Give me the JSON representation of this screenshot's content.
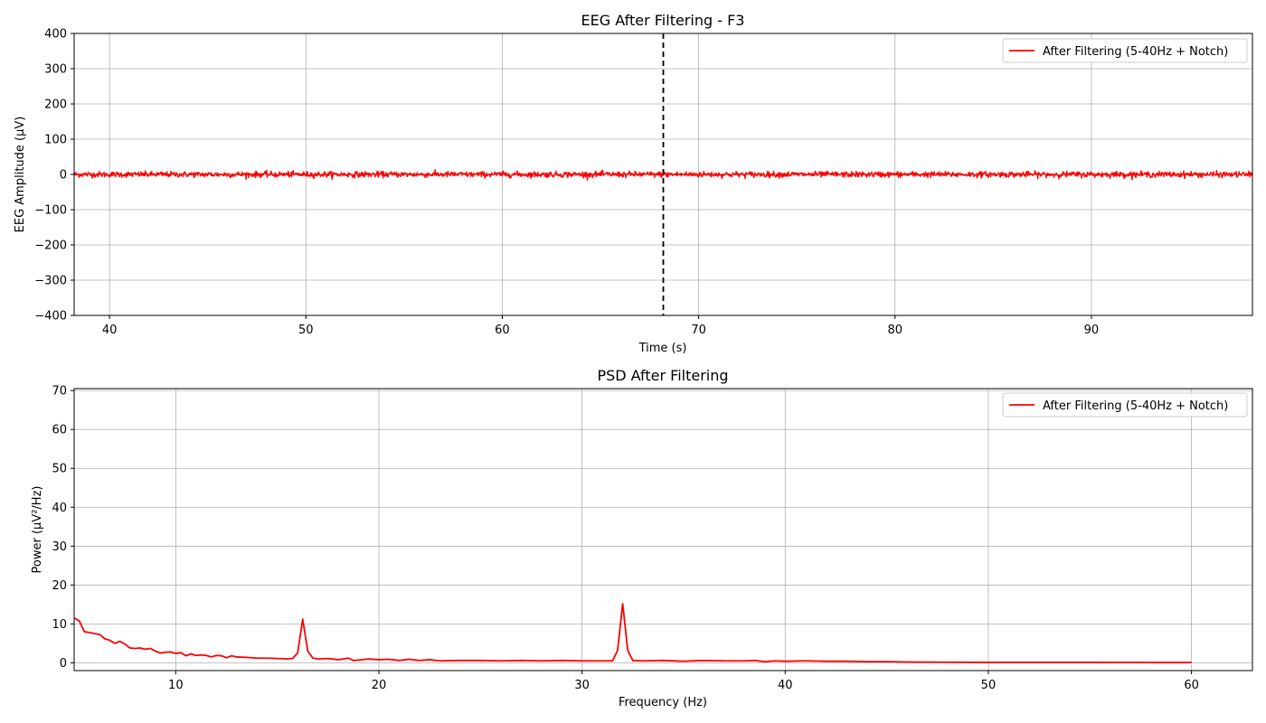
{
  "chart_data": [
    {
      "type": "line",
      "title": "EEG After Filtering - F3",
      "xlabel": "Time (s)",
      "ylabel": "EEG Amplitude (µV)",
      "xlim": [
        38.2,
        98.2
      ],
      "ylim": [
        -400,
        400
      ],
      "xticks": [
        40,
        50,
        60,
        70,
        80,
        90
      ],
      "yticks": [
        -400,
        -300,
        -200,
        -100,
        0,
        100,
        200,
        300,
        400
      ],
      "xtick_labels": [
        "40",
        "50",
        "60",
        "70",
        "80",
        "90"
      ],
      "ytick_labels": [
        "−400",
        "−300",
        "−200",
        "−100",
        "0",
        "100",
        "200",
        "300",
        "400"
      ],
      "grid": true,
      "legend_position": "top-right",
      "marker_line": {
        "x": 68.2,
        "style": "dashed",
        "color": "#000000"
      },
      "series": [
        {
          "name": "After Filtering (5-40Hz + Notch)",
          "color": "#ff0000",
          "signal": {
            "x_start": 38.2,
            "x_end": 98.2,
            "n_points": 2400,
            "center": 0,
            "noise_std": 4,
            "max_abs": 20
          }
        }
      ]
    },
    {
      "type": "line",
      "title": "PSD After Filtering",
      "xlabel": "Frequency (Hz)",
      "ylabel": "Power (µV²/Hz)",
      "xlim": [
        5,
        63
      ],
      "ylim": [
        -2,
        70.5
      ],
      "xticks": [
        10,
        20,
        30,
        40,
        50,
        60
      ],
      "yticks": [
        0,
        10,
        20,
        30,
        40,
        50,
        60,
        70
      ],
      "xtick_labels": [
        "10",
        "20",
        "30",
        "40",
        "50",
        "60"
      ],
      "ytick_labels": [
        "0",
        "10",
        "20",
        "30",
        "40",
        "50",
        "60",
        "70"
      ],
      "grid": true,
      "legend_position": "top-right",
      "series": [
        {
          "name": "After Filtering (5-40Hz + Notch)",
          "color": "#ff0000",
          "points": [
            [
              5.0,
              11.5
            ],
            [
              5.25,
              10.8
            ],
            [
              5.5,
              8.0
            ],
            [
              5.75,
              7.8
            ],
            [
              6.0,
              7.5
            ],
            [
              6.25,
              7.3
            ],
            [
              6.5,
              6.2
            ],
            [
              6.75,
              5.8
            ],
            [
              7.0,
              5.0
            ],
            [
              7.25,
              5.5
            ],
            [
              7.5,
              4.8
            ],
            [
              7.75,
              3.8
            ],
            [
              8.0,
              3.7
            ],
            [
              8.25,
              3.8
            ],
            [
              8.5,
              3.5
            ],
            [
              8.75,
              3.7
            ],
            [
              9.0,
              3.0
            ],
            [
              9.25,
              2.5
            ],
            [
              9.5,
              2.7
            ],
            [
              9.75,
              2.8
            ],
            [
              10.0,
              2.4
            ],
            [
              10.25,
              2.6
            ],
            [
              10.5,
              1.8
            ],
            [
              10.75,
              2.3
            ],
            [
              11.0,
              1.9
            ],
            [
              11.25,
              2.0
            ],
            [
              11.5,
              1.9
            ],
            [
              11.75,
              1.5
            ],
            [
              12.0,
              1.9
            ],
            [
              12.25,
              1.8
            ],
            [
              12.5,
              1.3
            ],
            [
              12.75,
              1.8
            ],
            [
              13.0,
              1.5
            ],
            [
              13.5,
              1.4
            ],
            [
              14.0,
              1.2
            ],
            [
              14.5,
              1.2
            ],
            [
              15.0,
              1.1
            ],
            [
              15.5,
              1.0
            ],
            [
              15.75,
              1.1
            ],
            [
              16.0,
              2.5
            ],
            [
              16.25,
              11.2
            ],
            [
              16.5,
              3.0
            ],
            [
              16.75,
              1.2
            ],
            [
              17.0,
              1.0
            ],
            [
              17.5,
              1.1
            ],
            [
              18.0,
              0.8
            ],
            [
              18.5,
              1.2
            ],
            [
              18.75,
              0.6
            ],
            [
              19.0,
              0.7
            ],
            [
              19.5,
              1.0
            ],
            [
              20.0,
              0.8
            ],
            [
              20.5,
              0.9
            ],
            [
              21.0,
              0.6
            ],
            [
              21.5,
              0.9
            ],
            [
              22.0,
              0.6
            ],
            [
              22.5,
              0.8
            ],
            [
              23.0,
              0.5
            ],
            [
              24.0,
              0.6
            ],
            [
              25.0,
              0.6
            ],
            [
              26.0,
              0.5
            ],
            [
              27.0,
              0.6
            ],
            [
              28.0,
              0.5
            ],
            [
              29.0,
              0.6
            ],
            [
              30.0,
              0.5
            ],
            [
              31.0,
              0.5
            ],
            [
              31.5,
              0.5
            ],
            [
              31.75,
              3.2
            ],
            [
              32.0,
              15.2
            ],
            [
              32.25,
              3.2
            ],
            [
              32.5,
              0.6
            ],
            [
              33.0,
              0.5
            ],
            [
              34.0,
              0.6
            ],
            [
              35.0,
              0.4
            ],
            [
              36.0,
              0.6
            ],
            [
              37.0,
              0.5
            ],
            [
              38.0,
              0.5
            ],
            [
              38.5,
              0.6
            ],
            [
              39.0,
              0.3
            ],
            [
              39.5,
              0.5
            ],
            [
              40.0,
              0.4
            ],
            [
              41.0,
              0.5
            ],
            [
              42.0,
              0.4
            ],
            [
              43.0,
              0.4
            ],
            [
              44.0,
              0.3
            ],
            [
              45.0,
              0.3
            ],
            [
              46.0,
              0.2
            ],
            [
              48.0,
              0.15
            ],
            [
              50.0,
              0.1
            ],
            [
              52.0,
              0.1
            ],
            [
              55.0,
              0.1
            ],
            [
              58.0,
              0.08
            ],
            [
              60.0,
              0.08
            ]
          ]
        }
      ]
    }
  ]
}
